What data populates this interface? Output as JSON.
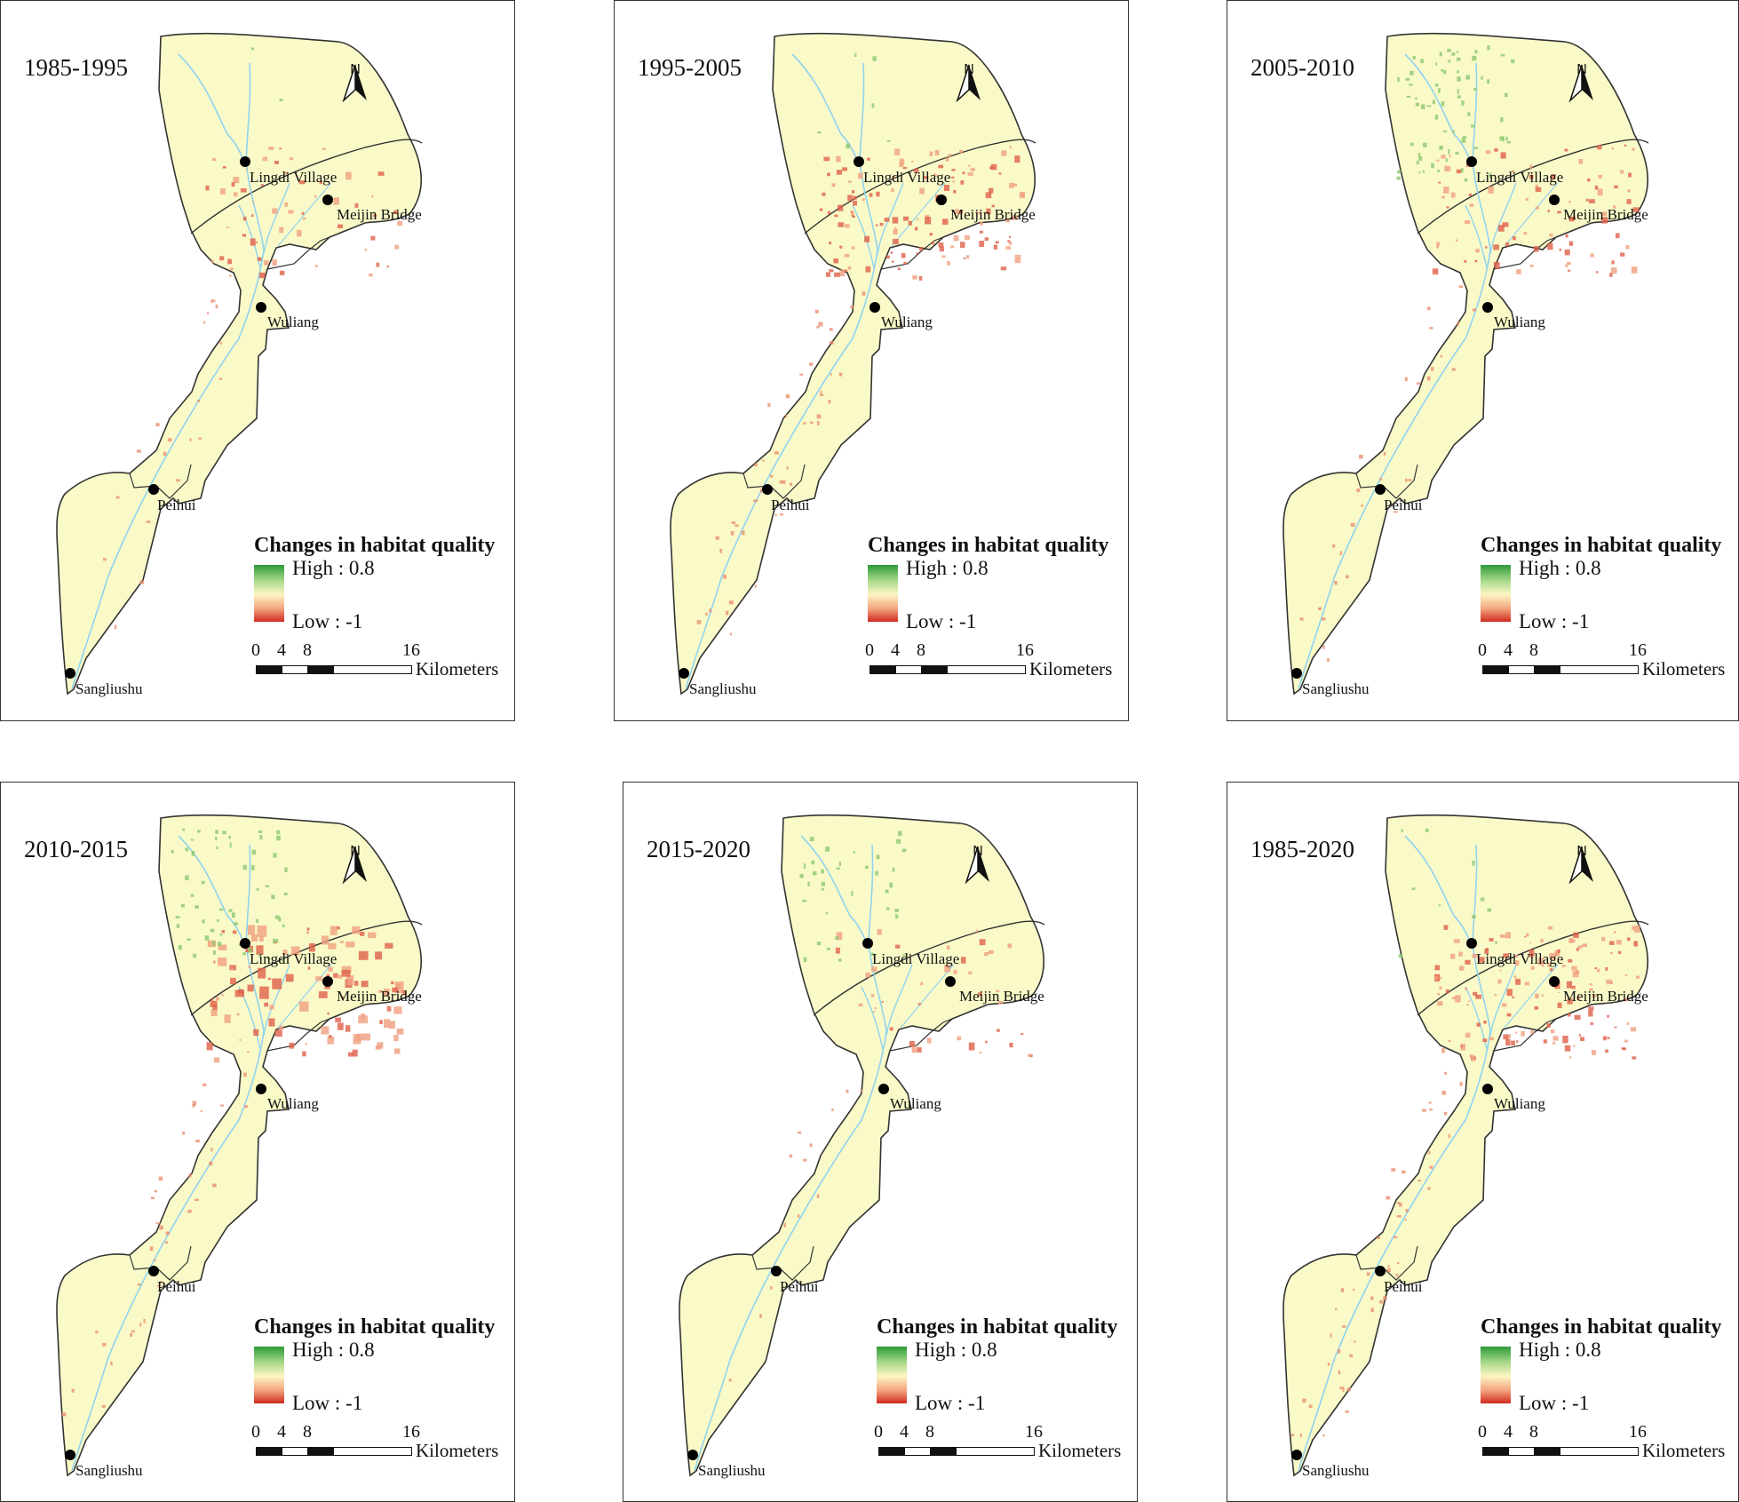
{
  "figure": {
    "panels": [
      {
        "period": "1985-1995"
      },
      {
        "period": "1995-2005"
      },
      {
        "period": "2005-2010"
      },
      {
        "period": "2010-2015"
      },
      {
        "period": "2015-2020"
      },
      {
        "period": "1985-2020"
      }
    ],
    "north_label": "N",
    "places": {
      "lingdi": "Lingdi Village",
      "meijin": "Meijin Bridge",
      "wuliang": "Wuliang",
      "peihui": "Peihui",
      "sangliushu": "Sangliushu"
    },
    "legend": {
      "title": "Changes in habitat quality",
      "high": "High : 0.8",
      "low": "Low : -1",
      "high_color": "#2e9a3a",
      "low_color": "#cf2a1f",
      "base_color": "#fafac8"
    },
    "scale_bar": {
      "ticks": [
        "0",
        "4",
        "8",
        "16"
      ],
      "units": "Kilometers"
    }
  }
}
